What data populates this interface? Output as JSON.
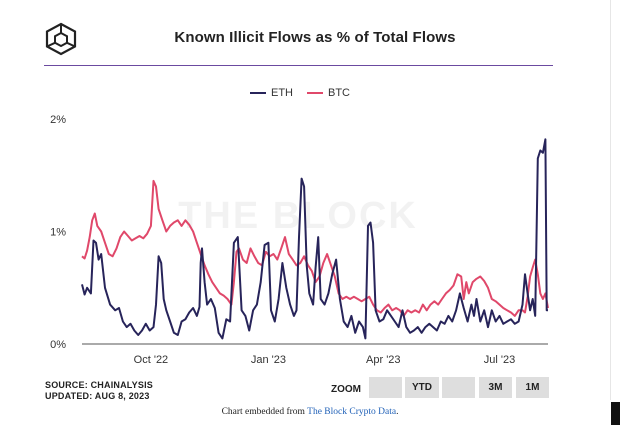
{
  "header": {
    "title": "Known Illicit Flows as % of Total Flows",
    "logo_icon": "the-block-cube-logo"
  },
  "watermark": "THE BLOCK",
  "colors": {
    "eth": "#27245a",
    "btc": "#e0486a",
    "rule": "#6b4aa0"
  },
  "chart_data": {
    "type": "line",
    "title": "Known Illicit Flows as % of Total Flows",
    "xlabel": "",
    "ylabel": "",
    "ylim": [
      0,
      2
    ],
    "x_start": "2022-08-08",
    "x_end": "2023-08-08",
    "y_ticks": [
      {
        "value": 0,
        "label": "0%"
      },
      {
        "value": 1,
        "label": "1%"
      },
      {
        "value": 2,
        "label": "2%"
      }
    ],
    "x_ticks": [
      {
        "date": "2022-10-01",
        "label": "Oct '22"
      },
      {
        "date": "2023-01-01",
        "label": "Jan '23"
      },
      {
        "date": "2023-04-01",
        "label": "Apr '23"
      },
      {
        "date": "2023-07-01",
        "label": "Jul '23"
      }
    ],
    "grid": false,
    "series": [
      {
        "name": "ETH",
        "color": "#27245a",
        "points": [
          [
            "2022-08-08",
            0.53
          ],
          [
            "2022-08-10",
            0.44
          ],
          [
            "2022-08-12",
            0.5
          ],
          [
            "2022-08-15",
            0.45
          ],
          [
            "2022-08-17",
            0.92
          ],
          [
            "2022-08-19",
            0.9
          ],
          [
            "2022-08-21",
            0.75
          ],
          [
            "2022-08-23",
            0.8
          ],
          [
            "2022-08-26",
            0.5
          ],
          [
            "2022-08-30",
            0.35
          ],
          [
            "2022-09-03",
            0.3
          ],
          [
            "2022-09-06",
            0.32
          ],
          [
            "2022-09-09",
            0.2
          ],
          [
            "2022-09-12",
            0.15
          ],
          [
            "2022-09-15",
            0.18
          ],
          [
            "2022-09-18",
            0.12
          ],
          [
            "2022-09-21",
            0.08
          ],
          [
            "2022-09-24",
            0.12
          ],
          [
            "2022-09-27",
            0.18
          ],
          [
            "2022-09-30",
            0.12
          ],
          [
            "2022-10-03",
            0.15
          ],
          [
            "2022-10-05",
            0.35
          ],
          [
            "2022-10-07",
            0.78
          ],
          [
            "2022-10-09",
            0.72
          ],
          [
            "2022-10-11",
            0.4
          ],
          [
            "2022-10-13",
            0.3
          ],
          [
            "2022-10-16",
            0.2
          ],
          [
            "2022-10-19",
            0.1
          ],
          [
            "2022-10-22",
            0.08
          ],
          [
            "2022-10-25",
            0.2
          ],
          [
            "2022-10-28",
            0.22
          ],
          [
            "2022-10-31",
            0.28
          ],
          [
            "2022-11-03",
            0.32
          ],
          [
            "2022-11-06",
            0.25
          ],
          [
            "2022-11-08",
            0.33
          ],
          [
            "2022-11-09",
            0.72
          ],
          [
            "2022-11-10",
            0.85
          ],
          [
            "2022-11-12",
            0.55
          ],
          [
            "2022-11-14",
            0.35
          ],
          [
            "2022-11-17",
            0.4
          ],
          [
            "2022-11-20",
            0.32
          ],
          [
            "2022-11-23",
            0.1
          ],
          [
            "2022-11-26",
            0.05
          ],
          [
            "2022-11-29",
            0.22
          ],
          [
            "2022-12-02",
            0.2
          ],
          [
            "2022-12-05",
            0.9
          ],
          [
            "2022-12-08",
            0.95
          ],
          [
            "2022-12-11",
            0.3
          ],
          [
            "2022-12-14",
            0.25
          ],
          [
            "2022-12-17",
            0.12
          ],
          [
            "2022-12-20",
            0.3
          ],
          [
            "2022-12-23",
            0.35
          ],
          [
            "2022-12-26",
            0.55
          ],
          [
            "2022-12-29",
            0.88
          ],
          [
            "2023-01-01",
            0.9
          ],
          [
            "2023-01-03",
            0.3
          ],
          [
            "2023-01-06",
            0.2
          ],
          [
            "2023-01-09",
            0.4
          ],
          [
            "2023-01-12",
            0.72
          ],
          [
            "2023-01-15",
            0.5
          ],
          [
            "2023-01-18",
            0.35
          ],
          [
            "2023-01-21",
            0.25
          ],
          [
            "2023-01-23",
            0.3
          ],
          [
            "2023-01-25",
            0.95
          ],
          [
            "2023-01-27",
            1.47
          ],
          [
            "2023-01-29",
            1.4
          ],
          [
            "2023-01-31",
            0.7
          ],
          [
            "2023-02-02",
            0.45
          ],
          [
            "2023-02-05",
            0.35
          ],
          [
            "2023-02-07",
            0.68
          ],
          [
            "2023-02-09",
            0.95
          ],
          [
            "2023-02-11",
            0.4
          ],
          [
            "2023-02-14",
            0.35
          ],
          [
            "2023-02-17",
            0.45
          ],
          [
            "2023-02-20",
            0.62
          ],
          [
            "2023-02-23",
            0.75
          ],
          [
            "2023-02-26",
            0.4
          ],
          [
            "2023-03-01",
            0.2
          ],
          [
            "2023-03-04",
            0.15
          ],
          [
            "2023-03-07",
            0.25
          ],
          [
            "2023-03-10",
            0.1
          ],
          [
            "2023-03-13",
            0.2
          ],
          [
            "2023-03-16",
            0.15
          ],
          [
            "2023-03-18",
            0.05
          ],
          [
            "2023-03-20",
            1.05
          ],
          [
            "2023-03-22",
            1.08
          ],
          [
            "2023-03-24",
            0.9
          ],
          [
            "2023-03-26",
            0.3
          ],
          [
            "2023-03-29",
            0.2
          ],
          [
            "2023-04-01",
            0.22
          ],
          [
            "2023-04-04",
            0.3
          ],
          [
            "2023-04-07",
            0.25
          ],
          [
            "2023-04-10",
            0.2
          ],
          [
            "2023-04-13",
            0.15
          ],
          [
            "2023-04-16",
            0.3
          ],
          [
            "2023-04-19",
            0.15
          ],
          [
            "2023-04-22",
            0.1
          ],
          [
            "2023-04-25",
            0.12
          ],
          [
            "2023-04-28",
            0.15
          ],
          [
            "2023-05-01",
            0.1
          ],
          [
            "2023-05-04",
            0.15
          ],
          [
            "2023-05-07",
            0.18
          ],
          [
            "2023-05-10",
            0.15
          ],
          [
            "2023-05-13",
            0.12
          ],
          [
            "2023-05-16",
            0.2
          ],
          [
            "2023-05-19",
            0.18
          ],
          [
            "2023-05-22",
            0.25
          ],
          [
            "2023-05-25",
            0.2
          ],
          [
            "2023-05-28",
            0.3
          ],
          [
            "2023-05-31",
            0.45
          ],
          [
            "2023-06-03",
            0.32
          ],
          [
            "2023-06-06",
            0.2
          ],
          [
            "2023-06-09",
            0.35
          ],
          [
            "2023-06-11",
            0.25
          ],
          [
            "2023-06-13",
            0.4
          ],
          [
            "2023-06-16",
            0.2
          ],
          [
            "2023-06-19",
            0.3
          ],
          [
            "2023-06-22",
            0.15
          ],
          [
            "2023-06-25",
            0.3
          ],
          [
            "2023-06-28",
            0.2
          ],
          [
            "2023-07-01",
            0.25
          ],
          [
            "2023-07-04",
            0.18
          ],
          [
            "2023-07-07",
            0.2
          ],
          [
            "2023-07-10",
            0.22
          ],
          [
            "2023-07-13",
            0.18
          ],
          [
            "2023-07-16",
            0.2
          ],
          [
            "2023-07-19",
            0.35
          ],
          [
            "2023-07-21",
            0.62
          ],
          [
            "2023-07-23",
            0.45
          ],
          [
            "2023-07-25",
            0.3
          ],
          [
            "2023-07-27",
            0.4
          ],
          [
            "2023-07-29",
            0.25
          ],
          [
            "2023-07-31",
            1.65
          ],
          [
            "2023-08-02",
            1.72
          ],
          [
            "2023-08-04",
            1.7
          ],
          [
            "2023-08-06",
            1.82
          ],
          [
            "2023-08-07",
            0.3
          ],
          [
            "2023-08-08",
            0.3
          ]
        ]
      },
      {
        "name": "BTC",
        "color": "#e0486a",
        "points": [
          [
            "2022-08-08",
            0.78
          ],
          [
            "2022-08-10",
            0.76
          ],
          [
            "2022-08-12",
            0.83
          ],
          [
            "2022-08-14",
            0.95
          ],
          [
            "2022-08-16",
            1.1
          ],
          [
            "2022-08-18",
            1.16
          ],
          [
            "2022-08-20",
            1.05
          ],
          [
            "2022-08-23",
            1.0
          ],
          [
            "2022-08-26",
            0.9
          ],
          [
            "2022-08-29",
            0.8
          ],
          [
            "2022-09-01",
            0.78
          ],
          [
            "2022-09-04",
            0.85
          ],
          [
            "2022-09-07",
            0.95
          ],
          [
            "2022-09-10",
            1.0
          ],
          [
            "2022-09-13",
            0.96
          ],
          [
            "2022-09-16",
            0.92
          ],
          [
            "2022-09-19",
            0.94
          ],
          [
            "2022-09-22",
            0.96
          ],
          [
            "2022-09-25",
            0.94
          ],
          [
            "2022-09-28",
            0.98
          ],
          [
            "2022-10-01",
            1.05
          ],
          [
            "2022-10-03",
            1.45
          ],
          [
            "2022-10-05",
            1.4
          ],
          [
            "2022-10-07",
            1.2
          ],
          [
            "2022-10-10",
            1.1
          ],
          [
            "2022-10-13",
            1.0
          ],
          [
            "2022-10-16",
            1.05
          ],
          [
            "2022-10-19",
            1.08
          ],
          [
            "2022-10-22",
            1.1
          ],
          [
            "2022-10-25",
            1.05
          ],
          [
            "2022-10-28",
            1.1
          ],
          [
            "2022-10-31",
            1.06
          ],
          [
            "2022-11-03",
            1.0
          ],
          [
            "2022-11-06",
            0.9
          ],
          [
            "2022-11-09",
            0.8
          ],
          [
            "2022-11-12",
            0.7
          ],
          [
            "2022-11-15",
            0.62
          ],
          [
            "2022-11-18",
            0.55
          ],
          [
            "2022-11-21",
            0.5
          ],
          [
            "2022-11-24",
            0.45
          ],
          [
            "2022-11-27",
            0.43
          ],
          [
            "2022-11-30",
            0.4
          ],
          [
            "2022-12-03",
            0.35
          ],
          [
            "2022-12-05",
            0.55
          ],
          [
            "2022-12-07",
            0.82
          ],
          [
            "2022-12-09",
            0.85
          ],
          [
            "2022-12-12",
            0.75
          ],
          [
            "2022-12-15",
            0.72
          ],
          [
            "2022-12-18",
            0.85
          ],
          [
            "2022-12-21",
            0.78
          ],
          [
            "2022-12-24",
            0.72
          ],
          [
            "2022-12-27",
            0.7
          ],
          [
            "2022-12-30",
            0.82
          ],
          [
            "2023-01-02",
            0.78
          ],
          [
            "2023-01-05",
            0.8
          ],
          [
            "2023-01-08",
            0.75
          ],
          [
            "2023-01-11",
            0.85
          ],
          [
            "2023-01-14",
            0.95
          ],
          [
            "2023-01-17",
            0.8
          ],
          [
            "2023-01-20",
            0.75
          ],
          [
            "2023-01-23",
            0.7
          ],
          [
            "2023-01-26",
            0.72
          ],
          [
            "2023-01-29",
            0.78
          ],
          [
            "2023-02-01",
            0.7
          ],
          [
            "2023-02-04",
            0.65
          ],
          [
            "2023-02-07",
            0.55
          ],
          [
            "2023-02-10",
            0.6
          ],
          [
            "2023-02-13",
            0.72
          ],
          [
            "2023-02-16",
            0.8
          ],
          [
            "2023-02-19",
            0.7
          ],
          [
            "2023-02-22",
            0.6
          ],
          [
            "2023-02-25",
            0.45
          ],
          [
            "2023-02-28",
            0.4
          ],
          [
            "2023-03-03",
            0.42
          ],
          [
            "2023-03-06",
            0.4
          ],
          [
            "2023-03-09",
            0.42
          ],
          [
            "2023-03-12",
            0.4
          ],
          [
            "2023-03-15",
            0.38
          ],
          [
            "2023-03-18",
            0.4
          ],
          [
            "2023-03-21",
            0.42
          ],
          [
            "2023-03-24",
            0.35
          ],
          [
            "2023-03-27",
            0.3
          ],
          [
            "2023-03-30",
            0.28
          ],
          [
            "2023-04-02",
            0.32
          ],
          [
            "2023-04-05",
            0.35
          ],
          [
            "2023-04-08",
            0.3
          ],
          [
            "2023-04-11",
            0.32
          ],
          [
            "2023-04-14",
            0.3
          ],
          [
            "2023-04-17",
            0.25
          ],
          [
            "2023-04-20",
            0.3
          ],
          [
            "2023-04-23",
            0.28
          ],
          [
            "2023-04-26",
            0.3
          ],
          [
            "2023-04-29",
            0.28
          ],
          [
            "2023-05-02",
            0.35
          ],
          [
            "2023-05-05",
            0.3
          ],
          [
            "2023-05-08",
            0.35
          ],
          [
            "2023-05-11",
            0.38
          ],
          [
            "2023-05-14",
            0.35
          ],
          [
            "2023-05-17",
            0.4
          ],
          [
            "2023-05-20",
            0.45
          ],
          [
            "2023-05-23",
            0.48
          ],
          [
            "2023-05-26",
            0.52
          ],
          [
            "2023-05-29",
            0.62
          ],
          [
            "2023-06-01",
            0.6
          ],
          [
            "2023-06-03",
            0.4
          ],
          [
            "2023-06-05",
            0.55
          ],
          [
            "2023-06-07",
            0.45
          ],
          [
            "2023-06-10",
            0.55
          ],
          [
            "2023-06-13",
            0.58
          ],
          [
            "2023-06-16",
            0.6
          ],
          [
            "2023-06-19",
            0.56
          ],
          [
            "2023-06-22",
            0.5
          ],
          [
            "2023-06-25",
            0.4
          ],
          [
            "2023-06-28",
            0.38
          ],
          [
            "2023-07-01",
            0.35
          ],
          [
            "2023-07-04",
            0.32
          ],
          [
            "2023-07-07",
            0.3
          ],
          [
            "2023-07-10",
            0.28
          ],
          [
            "2023-07-13",
            0.25
          ],
          [
            "2023-07-16",
            0.3
          ],
          [
            "2023-07-19",
            0.3
          ],
          [
            "2023-07-21",
            0.28
          ],
          [
            "2023-07-23",
            0.42
          ],
          [
            "2023-07-25",
            0.6
          ],
          [
            "2023-07-27",
            0.68
          ],
          [
            "2023-07-29",
            0.75
          ],
          [
            "2023-07-31",
            0.62
          ],
          [
            "2023-08-02",
            0.45
          ],
          [
            "2023-08-04",
            0.4
          ],
          [
            "2023-08-06",
            0.45
          ],
          [
            "2023-08-08",
            0.32
          ]
        ]
      }
    ]
  },
  "legend": {
    "eth_label": "ETH",
    "btc_label": "BTC"
  },
  "footer": {
    "source": "SOURCE: CHAINALYSIS",
    "updated": "UPDATED: AUG 8, 2023",
    "zoom_label": "ZOOM",
    "zoom_buttons": [
      "",
      "YTD",
      "",
      "3M",
      "1M"
    ],
    "embed_prefix": "Chart embedded from ",
    "embed_link": "The Block Crypto Data",
    "embed_suffix": "."
  }
}
